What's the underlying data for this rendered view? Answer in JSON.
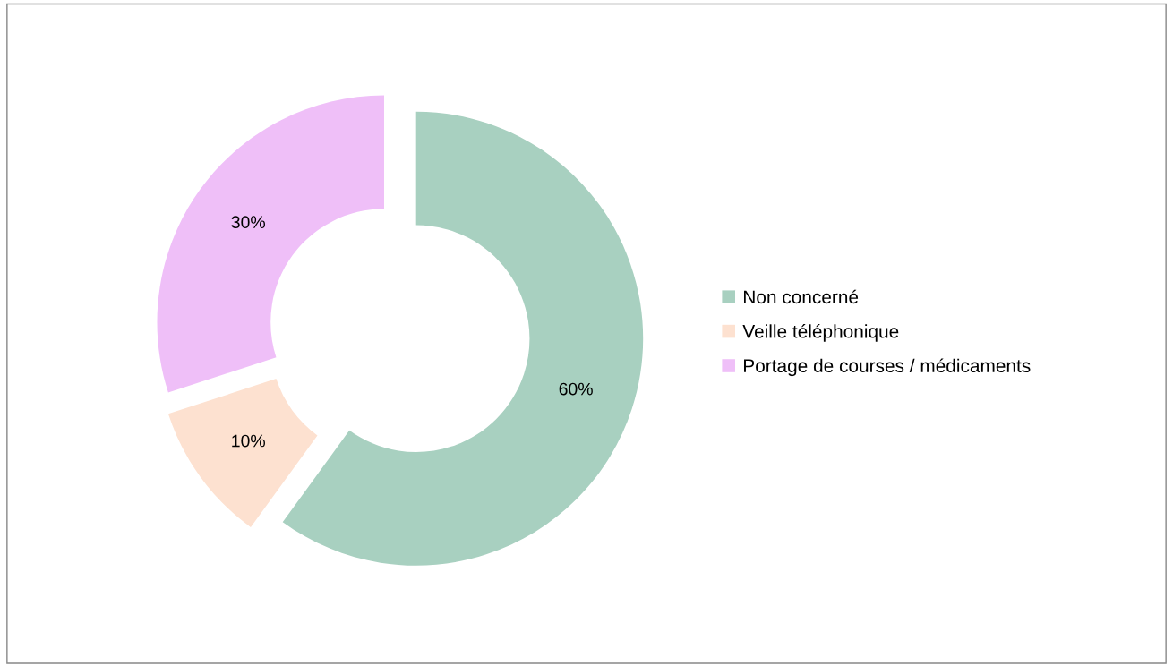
{
  "chart_data": {
    "type": "donut",
    "categories": [
      "Non concerné",
      "Veille téléphonique",
      "Portage de courses / médicaments"
    ],
    "values": [
      60,
      10,
      30
    ],
    "colors": [
      "#a8d0c0",
      "#fde1d0",
      "#efbff8"
    ],
    "value_labels": [
      "60%",
      "10%",
      "30%"
    ],
    "legend": "right"
  }
}
